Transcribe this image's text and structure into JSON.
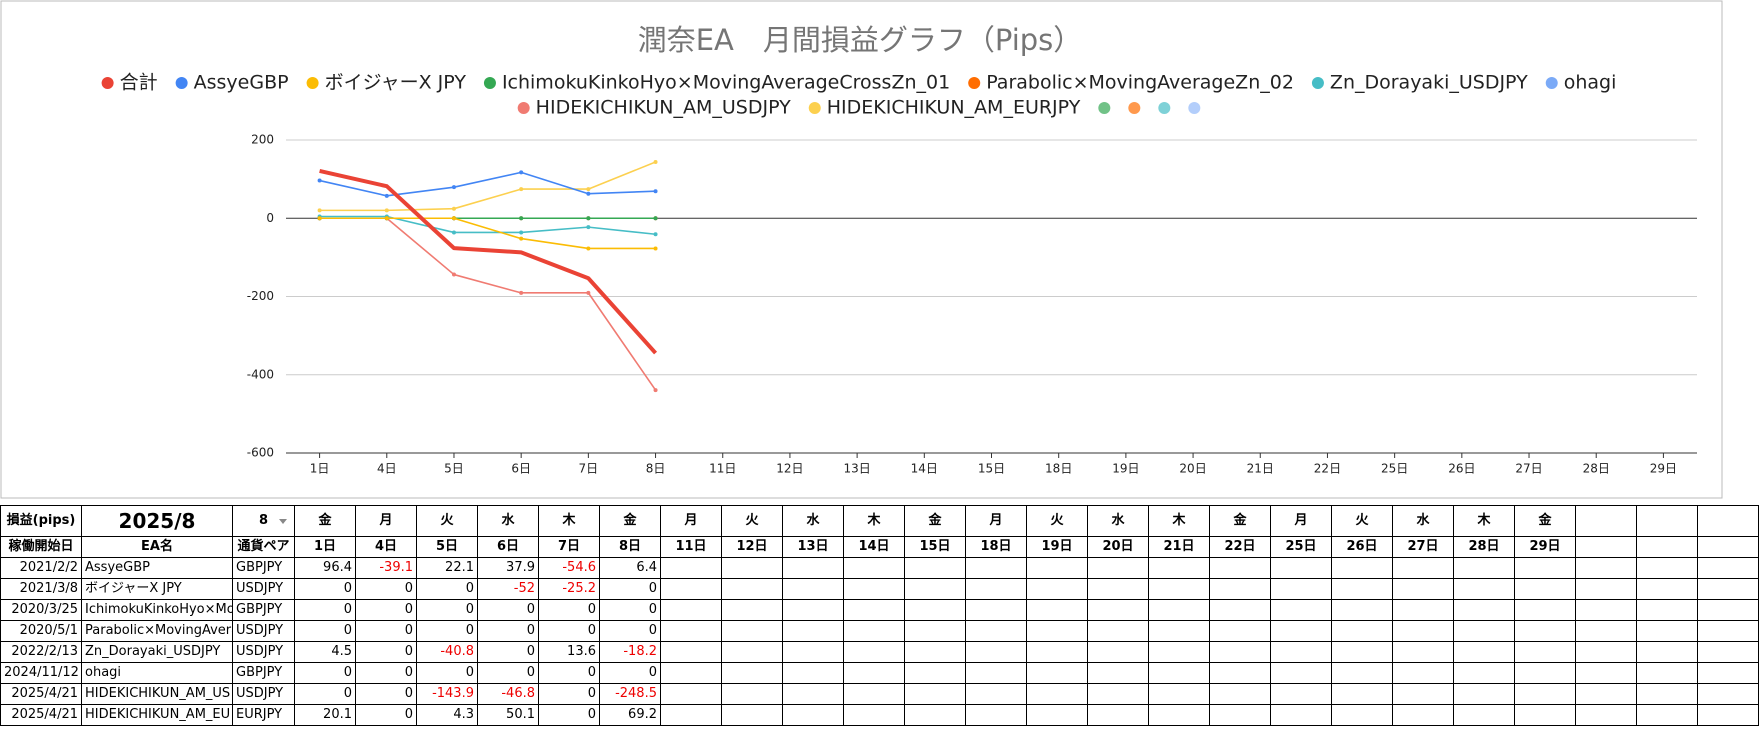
{
  "chart_data": {
    "type": "line",
    "title": "潤奈EA　月間損益グラフ（Pips）",
    "categories": [
      "1日",
      "4日",
      "5日",
      "6日",
      "7日",
      "8日",
      "11日",
      "12日",
      "13日",
      "14日",
      "15日",
      "18日",
      "19日",
      "20日",
      "21日",
      "22日",
      "25日",
      "26日",
      "27日",
      "28日",
      "29日"
    ],
    "series": [
      {
        "name": "合計",
        "color": "#ea4335",
        "values": [
          121,
          81.9,
          -76.4,
          -87.2,
          -153.4,
          -344.5,
          null,
          null,
          null,
          null,
          null,
          null,
          null,
          null,
          null,
          null,
          null,
          null,
          null,
          null,
          null
        ]
      },
      {
        "name": "AssyeGBP",
        "color": "#4285f4",
        "values": [
          96.4,
          57.3,
          79.4,
          117.3,
          62.7,
          69.1,
          null,
          null,
          null,
          null,
          null,
          null,
          null,
          null,
          null,
          null,
          null,
          null,
          null,
          null,
          null
        ]
      },
      {
        "name": "ボイジャーX JPY",
        "color": "#fbbc04",
        "values": [
          0,
          0,
          0,
          -52,
          -77.2,
          -77.2,
          null,
          null,
          null,
          null,
          null,
          null,
          null,
          null,
          null,
          null,
          null,
          null,
          null,
          null,
          null
        ]
      },
      {
        "name": "IchimokuKinkoHyo×MovingAverageCrossZn_01",
        "color": "#34a853",
        "values": [
          0,
          0,
          0,
          0,
          0,
          0,
          null,
          null,
          null,
          null,
          null,
          null,
          null,
          null,
          null,
          null,
          null,
          null,
          null,
          null,
          null
        ]
      },
      {
        "name": "Parabolic×MovingAverageZn_02",
        "color": "#ff6d01",
        "values": [
          0,
          0,
          0,
          0,
          0,
          0,
          null,
          null,
          null,
          null,
          null,
          null,
          null,
          null,
          null,
          null,
          null,
          null,
          null,
          null,
          null
        ]
      },
      {
        "name": "Zn_Dorayaki_USDJPY",
        "color": "#46bdc6",
        "values": [
          4.5,
          4.5,
          -36.3,
          -36.3,
          -22.7,
          -40.9,
          null,
          null,
          null,
          null,
          null,
          null,
          null,
          null,
          null,
          null,
          null,
          null,
          null,
          null,
          null
        ]
      },
      {
        "name": "ohagi",
        "color": "#7baaf7",
        "values": [
          0,
          0,
          0,
          0,
          0,
          0,
          null,
          null,
          null,
          null,
          null,
          null,
          null,
          null,
          null,
          null,
          null,
          null,
          null,
          null,
          null
        ]
      },
      {
        "name": "HIDEKICHIKUN_AM_USDJPY",
        "color": "#f07b72",
        "values": [
          0,
          0,
          -143.9,
          -190.7,
          -190.7,
          -439.2,
          null,
          null,
          null,
          null,
          null,
          null,
          null,
          null,
          null,
          null,
          null,
          null,
          null,
          null,
          null
        ]
      },
      {
        "name": "HIDEKICHIKUN_AM_EURJPY",
        "color": "#fcd04f",
        "values": [
          20.1,
          20.1,
          24.4,
          74.5,
          74.5,
          143.7,
          null,
          null,
          null,
          null,
          null,
          null,
          null,
          null,
          null,
          null,
          null,
          null,
          null,
          null,
          null
        ]
      }
    ],
    "legend_extra_colors": [
      "#71c287",
      "#ff994d",
      "#7ed1d7",
      "#b3cefb"
    ],
    "ylim": [
      -600,
      200
    ],
    "yticks": [
      -600,
      -400,
      -200,
      0,
      200
    ],
    "grid": true
  },
  "table": {
    "header": {
      "label": "損益(pips)",
      "month": "2025/8",
      "selector": "8",
      "weekdays": [
        "金",
        "月",
        "火",
        "水",
        "木",
        "金",
        "月",
        "火",
        "水",
        "木",
        "金",
        "月",
        "火",
        "水",
        "木",
        "金",
        "月",
        "火",
        "水",
        "木",
        "金"
      ]
    },
    "columns": [
      "稼働開始日",
      "EA名",
      "通貨ペア"
    ],
    "dates": [
      "1日",
      "4日",
      "5日",
      "6日",
      "7日",
      "8日",
      "11日",
      "12日",
      "13日",
      "14日",
      "15日",
      "18日",
      "19日",
      "20日",
      "21日",
      "22日",
      "25日",
      "26日",
      "27日",
      "28日",
      "29日"
    ],
    "rows": [
      [
        "2021/2/2",
        "AssyeGBP",
        "GBPJPY",
        96.4,
        -39.1,
        22.1,
        37.9,
        -54.6,
        6.4
      ],
      [
        "2021/3/8",
        "ボイジャーX JPY",
        "USDJPY",
        0,
        0,
        0,
        -52,
        -25.2,
        0
      ],
      [
        "2020/3/25",
        "IchimokuKinkoHyo×Movi",
        "GBPJPY",
        0,
        0,
        0,
        0,
        0,
        0
      ],
      [
        "2020/5/1",
        "Parabolic×MovingAverag",
        "USDJPY",
        0,
        0,
        0,
        0,
        0,
        0
      ],
      [
        "2022/2/13",
        "Zn_Dorayaki_USDJPY",
        "USDJPY",
        4.5,
        0,
        -40.8,
        0,
        13.6,
        -18.2
      ],
      [
        "2024/11/12",
        "ohagi",
        "GBPJPY",
        0,
        0,
        0,
        0,
        0,
        0
      ],
      [
        "2025/4/21",
        "HIDEKICHIKUN_AM_US",
        "USDJPY",
        0,
        0,
        -143.9,
        -46.8,
        0,
        -248.5
      ],
      [
        "2025/4/21",
        "HIDEKICHIKUN_AM_EU",
        "EURJPY",
        20.1,
        0,
        4.3,
        50.1,
        0,
        69.2
      ]
    ]
  }
}
